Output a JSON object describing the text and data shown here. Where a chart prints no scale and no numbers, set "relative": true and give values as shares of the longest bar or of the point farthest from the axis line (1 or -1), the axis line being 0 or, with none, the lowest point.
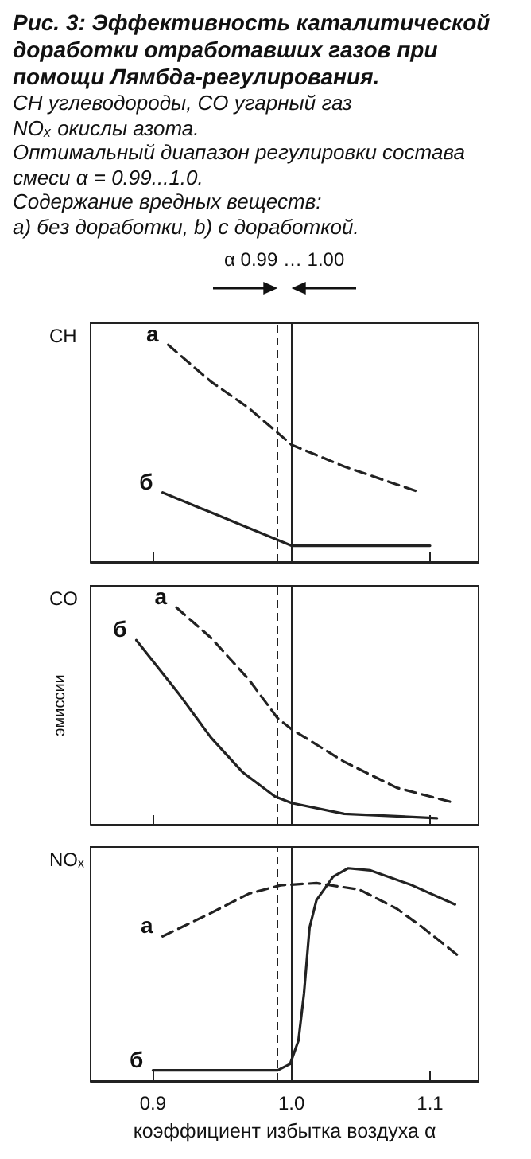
{
  "chart_data": [
    {
      "type": "other",
      "title": "Рис. 3: Эффективность каталитической доработки отработавших газов при помощи Лямбда-регулирования.",
      "subtitle": "CH углеводороды, CO угарный газ",
      "annotations": [
        "NOₓ окислы азота.",
        "Оптимальный диапазон регулировки состава смеси α = 0.99...1.0.",
        "Содержание вредных веществ:",
        "a) без доработки, b) с доработкой."
      ]
    },
    {
      "type": "line",
      "title": "CH",
      "relative": true,
      "xlim": [
        0.855,
        1.135
      ],
      "xticks": [
        0.9,
        1.0,
        1.1
      ],
      "tick_labels": false,
      "annotations": [
        "α 0.99 … 1.00"
      ],
      "ref_lines": [
        {
          "axis": "x",
          "value": 0.99,
          "line_style": "dashed"
        },
        {
          "axis": "x",
          "value": 1.0,
          "line_style": "solid"
        }
      ],
      "series": [
        {
          "name": "а",
          "color": "#222222",
          "line_style": "dashed",
          "x": [
            0.911,
            0.942,
            0.969,
            1.0,
            1.038,
            1.093
          ],
          "values": [
            1,
            0.83,
            0.71,
            0.54,
            0.44,
            0.32
          ]
        },
        {
          "name": "б",
          "color": "#222222",
          "line_style": "solid",
          "x": [
            0.907,
            1.0,
            1.1
          ],
          "values": [
            0.32,
            0.075,
            0.075
          ]
        }
      ]
    },
    {
      "type": "line",
      "title": "CO",
      "ylabel": "эмиссии",
      "relative": true,
      "xlim": [
        0.855,
        1.135
      ],
      "xticks": [
        0.9,
        1.0,
        1.1
      ],
      "tick_labels": false,
      "ref_lines": [
        {
          "axis": "x",
          "value": 0.99,
          "line_style": "dashed"
        },
        {
          "axis": "x",
          "value": 1.0,
          "line_style": "solid"
        }
      ],
      "series": [
        {
          "name": "а",
          "color": "#222222",
          "line_style": "dashed",
          "x": [
            0.917,
            0.942,
            0.969,
            0.99,
            1.0,
            1.038,
            1.076,
            1.118
          ],
          "values": [
            1,
            0.86,
            0.67,
            0.49,
            0.44,
            0.29,
            0.17,
            0.1
          ]
        },
        {
          "name": "б",
          "color": "#222222",
          "line_style": "solid",
          "x": [
            0.888,
            0.919,
            0.942,
            0.965,
            0.988,
            1.0,
            1.038,
            1.105
          ],
          "values": [
            0.85,
            0.6,
            0.4,
            0.24,
            0.13,
            0.1,
            0.05,
            0.03
          ]
        }
      ]
    },
    {
      "type": "line",
      "title": "NOₓ",
      "xlabel": "коэффициент избытка воздуха α",
      "relative": true,
      "xlim": [
        0.855,
        1.135
      ],
      "xticks": [
        {
          "value": 0.9,
          "label": "0.9"
        },
        {
          "value": 1.0,
          "label": "1.0"
        },
        {
          "value": 1.1,
          "label": "1.1"
        }
      ],
      "tick_labels": "x",
      "ref_lines": [
        {
          "axis": "x",
          "value": 0.99,
          "line_style": "dashed"
        },
        {
          "axis": "x",
          "value": 1.0,
          "line_style": "solid"
        }
      ],
      "series": [
        {
          "name": "а",
          "color": "#222222",
          "line_style": "dashed",
          "x": [
            0.907,
            0.942,
            0.969,
            0.992,
            1.018,
            1.049,
            1.076,
            1.095,
            1.122
          ],
          "values": [
            0.68,
            0.79,
            0.88,
            0.92,
            0.93,
            0.9,
            0.81,
            0.72,
            0.58
          ]
        },
        {
          "name": "б",
          "color": "#222222",
          "line_style": "solid",
          "x": [
            0.9,
            0.99,
            0.999,
            1.005,
            1.009,
            1.013,
            1.018,
            1.03,
            1.041,
            1.057,
            1.087,
            1.118
          ],
          "values": [
            0.05,
            0.05,
            0.08,
            0.19,
            0.41,
            0.72,
            0.85,
            0.96,
            1.0,
            0.99,
            0.92,
            0.83
          ]
        }
      ]
    }
  ]
}
